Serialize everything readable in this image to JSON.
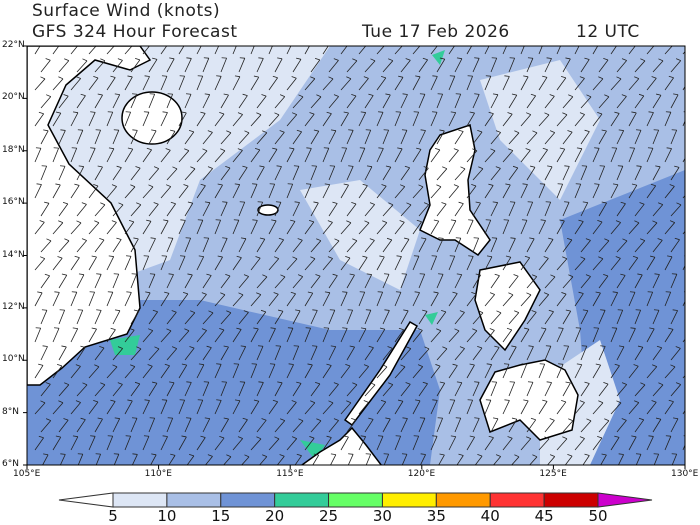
{
  "title": "Surface Wind (knots)",
  "subtitle": "GFS 324 Hour Forecast",
  "valid_date": "Tue 17 Feb 2026",
  "valid_time": "12 UTC",
  "lat_labels": [
    "22°N",
    "20°N",
    "18°N",
    "16°N",
    "14°N",
    "12°N",
    "10°N",
    "8°N",
    "6°N"
  ],
  "lon_labels": [
    "105°E",
    "110°E",
    "115°E",
    "120°E",
    "125°E",
    "130°E"
  ],
  "map_extent": {
    "lon": [
      105,
      130
    ],
    "lat": [
      6,
      22
    ]
  },
  "colorbar": {
    "labels": [
      "5",
      "10",
      "15",
      "20",
      "25",
      "30",
      "35",
      "40",
      "45",
      "50"
    ],
    "colors": [
      "#ffffff",
      "#dde6f5",
      "#a9bfe6",
      "#6f93d6",
      "#33cc99",
      "#66ff66",
      "#ffee00",
      "#ff9900",
      "#ff3333",
      "#cc0000",
      "#cc00cc"
    ]
  },
  "map_colors": {
    "land": "#ffffff",
    "coast": "#000000",
    "barb": "#222222"
  }
}
